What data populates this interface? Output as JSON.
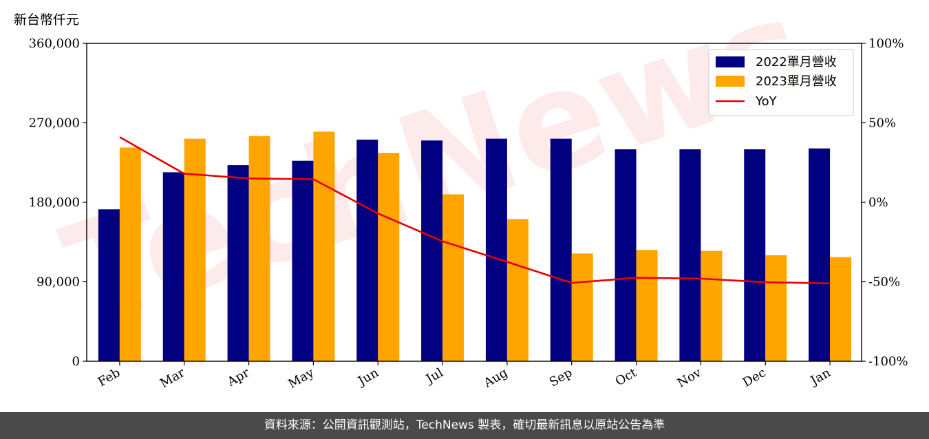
{
  "watermark": "TechNews",
  "y_unit_label": "新台幣仟元",
  "footer": "資料來源：公開資訊觀測站，TechNews 製表，確切最新訊息以原站公告為準",
  "colors": {
    "series2022": "#000080",
    "series2023": "#FFA500",
    "yoy": "#E60000"
  },
  "chart_data": {
    "type": "bar",
    "categories": [
      "Feb",
      "Mar",
      "Apr",
      "May",
      "Jun",
      "Jul",
      "Aug",
      "Sep",
      "Oct",
      "Nov",
      "Dec",
      "Jan"
    ],
    "series": [
      {
        "name": "2022單月營收",
        "type": "bar",
        "axis": "left",
        "values": [
          172000,
          214000,
          222000,
          227000,
          251000,
          250000,
          252000,
          252000,
          240000,
          240000,
          240000,
          241000
        ]
      },
      {
        "name": "2023單月營收",
        "type": "bar",
        "axis": "left",
        "values": [
          242000,
          252000,
          255000,
          260000,
          236000,
          189000,
          161000,
          122000,
          126000,
          125000,
          120000,
          118000
        ]
      },
      {
        "name": "YoY",
        "type": "line",
        "axis": "right",
        "values": [
          41,
          18,
          15,
          14.5,
          -7,
          -24.5,
          -37.5,
          -50.7,
          -47.5,
          -48,
          -50.3,
          -51
        ]
      }
    ],
    "ylim": [
      0,
      360000
    ],
    "yticks": [
      0,
      90000,
      180000,
      270000,
      360000
    ],
    "ytick_labels": [
      "0",
      "90,000",
      "180,000",
      "270,000",
      "360,000"
    ],
    "y2lim": [
      -100,
      100
    ],
    "y2ticks": [
      -100,
      -50,
      0,
      50,
      100
    ],
    "y2tick_labels": [
      "-100%",
      "-50%",
      "0%",
      "50%",
      "100%"
    ],
    "legend": "top-right",
    "grid": false
  }
}
